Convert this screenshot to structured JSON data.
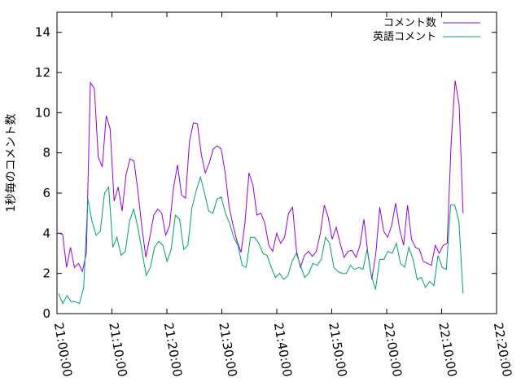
{
  "chart_data": {
    "type": "line",
    "title": "",
    "xlabel": "",
    "ylabel": "1秒毎のコメント数",
    "ylim": [
      0,
      15
    ],
    "yticks": [
      0,
      2,
      4,
      6,
      8,
      10,
      12,
      14
    ],
    "xlim": [
      "21:00:00",
      "22:20:00"
    ],
    "xticks": [
      "21:00:00",
      "21:10:00",
      "21:20:00",
      "21:30:00",
      "21:40:00",
      "21:50:00",
      "22:00:00",
      "22:10:00",
      "22:20:00"
    ],
    "x_minutes_per_point": 1,
    "x_start": "21:00:00",
    "legend_position": "top-right",
    "grid": false,
    "series": [
      {
        "name": "コメント数",
        "color": "#9400d3",
        "values": [
          4.0,
          3.95,
          2.3,
          3.3,
          2.3,
          2.5,
          2.1,
          3.0,
          11.5,
          11.2,
          7.8,
          7.3,
          9.85,
          9.2,
          5.6,
          6.3,
          5.1,
          6.9,
          7.7,
          7.6,
          6.1,
          4.3,
          2.8,
          3.8,
          4.9,
          5.2,
          5.0,
          3.9,
          4.4,
          6.3,
          7.4,
          5.9,
          5.75,
          8.6,
          9.5,
          9.45,
          7.9,
          7.0,
          7.5,
          8.2,
          8.35,
          8.2,
          7.0,
          5.3,
          4.4,
          3.6,
          3.05,
          4.5,
          7.0,
          6.4,
          4.9,
          5.0,
          4.5,
          3.4,
          3.1,
          4.0,
          3.5,
          3.8,
          5.0,
          5.3,
          3.1,
          2.3,
          2.9,
          3.1,
          2.85,
          3.1,
          4.0,
          5.4,
          4.8,
          3.7,
          4.3,
          3.5,
          2.8,
          3.1,
          3.15,
          2.8,
          3.4,
          4.7,
          3.0,
          1.7,
          3.0,
          5.3,
          4.1,
          3.8,
          4.4,
          5.5,
          4.2,
          3.4,
          5.4,
          3.7,
          3.3,
          3.2,
          2.6,
          2.5,
          2.4,
          3.4,
          3.0,
          3.4,
          3.5,
          8.5,
          11.6,
          10.4,
          5.0
        ]
      },
      {
        "name": "英語コメント",
        "color": "#009e73",
        "values": [
          1.0,
          0.5,
          0.9,
          0.6,
          0.6,
          0.5,
          1.3,
          5.7,
          4.6,
          3.9,
          4.1,
          6.0,
          6.3,
          3.3,
          3.8,
          2.9,
          3.1,
          4.6,
          5.2,
          4.3,
          3.1,
          1.9,
          2.3,
          3.3,
          3.6,
          3.4,
          2.6,
          3.2,
          4.9,
          4.7,
          3.2,
          3.4,
          5.3,
          6.1,
          6.8,
          6.0,
          5.1,
          5.0,
          5.7,
          5.8,
          5.0,
          4.5,
          3.8,
          3.4,
          2.4,
          2.3,
          3.8,
          3.8,
          3.5,
          3.0,
          2.9,
          2.3,
          1.8,
          2.0,
          1.7,
          1.9,
          2.6,
          3.0,
          2.4,
          1.8,
          2.0,
          2.5,
          2.4,
          2.7,
          3.8,
          3.5,
          2.3,
          2.1,
          2.0,
          2.0,
          2.4,
          2.2,
          2.3,
          2.2,
          3.2,
          1.9,
          1.2,
          2.7,
          2.7,
          3.1,
          3.0,
          3.5,
          2.5,
          2.3,
          3.3,
          2.7,
          1.7,
          1.8,
          1.3,
          1.6,
          1.4,
          2.9,
          2.3,
          2.2,
          5.4,
          5.4,
          4.6,
          1.0
        ]
      }
    ]
  }
}
